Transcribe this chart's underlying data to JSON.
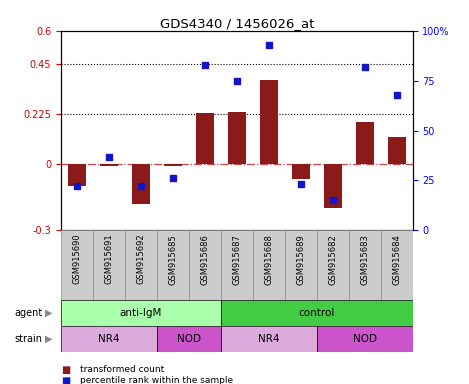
{
  "title": "GDS4340 / 1456026_at",
  "samples": [
    "GSM915690",
    "GSM915691",
    "GSM915692",
    "GSM915685",
    "GSM915686",
    "GSM915687",
    "GSM915688",
    "GSM915689",
    "GSM915682",
    "GSM915683",
    "GSM915684"
  ],
  "transformed_count": [
    -0.1,
    -0.01,
    -0.18,
    -0.01,
    0.23,
    0.235,
    0.38,
    -0.07,
    -0.2,
    0.19,
    0.12
  ],
  "percentile_rank": [
    22,
    37,
    22,
    26,
    83,
    75,
    93,
    23,
    15,
    82,
    68
  ],
  "ylim_left": [
    -0.3,
    0.6
  ],
  "ylim_right": [
    0,
    100
  ],
  "yticks_left": [
    -0.3,
    0.0,
    0.225,
    0.45,
    0.6
  ],
  "yticks_right": [
    0,
    25,
    50,
    75,
    100
  ],
  "ytick_labels_left": [
    "-0.3",
    "0",
    "0.225",
    "0.45",
    "0.6"
  ],
  "ytick_labels_right": [
    "0",
    "25",
    "50",
    "75",
    "100%"
  ],
  "hlines": [
    0.225,
    0.45
  ],
  "bar_color": "#8B1A1A",
  "dot_color": "#1515C8",
  "ref_line_color": "#CC4444",
  "agent_groups": [
    {
      "label": "anti-IgM",
      "start": 0,
      "end": 5,
      "color": "#AAFFAA"
    },
    {
      "label": "control",
      "start": 5,
      "end": 11,
      "color": "#44CC44"
    }
  ],
  "strain_groups": [
    {
      "label": "NR4",
      "start": 0,
      "end": 3,
      "color": "#DDAADD"
    },
    {
      "label": "NOD",
      "start": 3,
      "end": 5,
      "color": "#CC55CC"
    },
    {
      "label": "NR4",
      "start": 5,
      "end": 8,
      "color": "#DDAADD"
    },
    {
      "label": "NOD",
      "start": 8,
      "end": 11,
      "color": "#CC55CC"
    }
  ],
  "legend_items": [
    {
      "label": "transformed count",
      "color": "#8B1A1A"
    },
    {
      "label": "percentile rank within the sample",
      "color": "#1515C8"
    }
  ],
  "xtick_bg": "#CCCCCC",
  "sample_box_edge": "#888888"
}
